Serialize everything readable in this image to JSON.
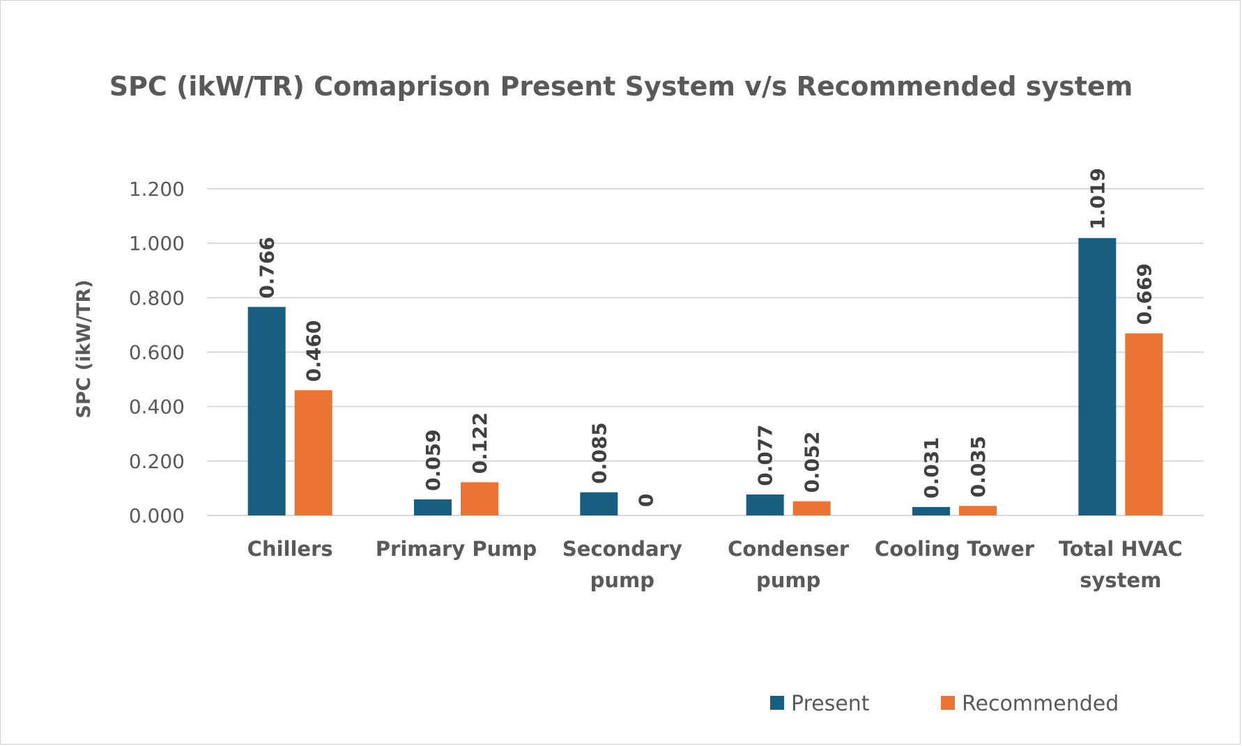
{
  "chart_data": {
    "type": "bar",
    "title": "SPC (ikW/TR) Comaprison Present System v/s Recommended system",
    "xlabel": "",
    "ylabel": "SPC (ikW/TR)",
    "ylim": [
      0,
      1.2
    ],
    "ytick_values": [
      0,
      0.2,
      0.4,
      0.6,
      0.8,
      1.0,
      1.2
    ],
    "ytick_labels": [
      "0.000",
      "0.200",
      "0.400",
      "0.600",
      "0.800",
      "1.000",
      "1.200"
    ],
    "grid": "horizontal",
    "legend_position": "bottom-right",
    "categories": [
      [
        "Chillers"
      ],
      [
        "Primary Pump"
      ],
      [
        "Secondary",
        "pump"
      ],
      [
        "Condenser",
        "pump"
      ],
      [
        "Cooling Tower"
      ],
      [
        "Total HVAC",
        "system"
      ]
    ],
    "series": [
      {
        "name": "Present",
        "color": "#175E80",
        "values": [
          0.766,
          0.059,
          0.085,
          0.077,
          0.031,
          1.019
        ],
        "labels": [
          "0.766",
          "0.059",
          "0.085",
          "0.077",
          "0.031",
          "1.019"
        ]
      },
      {
        "name": "Recommended",
        "color": "#EB7434",
        "values": [
          0.46,
          0.122,
          0,
          0.052,
          0.035,
          0.669
        ],
        "labels": [
          "0.460",
          "0.122",
          "0",
          "0.052",
          "0.035",
          "0.669"
        ]
      }
    ]
  }
}
